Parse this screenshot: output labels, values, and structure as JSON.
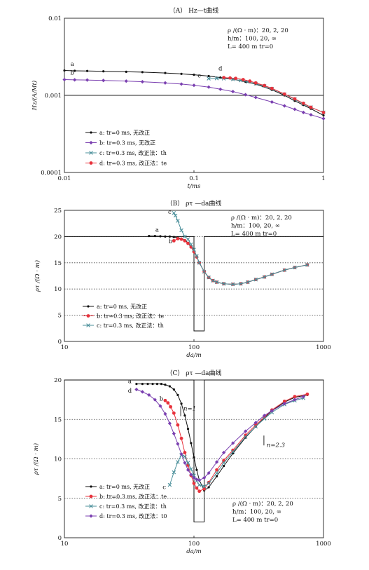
{
  "chart_data": [
    {
      "type": "line",
      "title": "（A） Hz—t曲线",
      "xlabel": "t/ms",
      "ylabel": "Hz/(A/Mt)",
      "x_scale": "log",
      "y_scale": "log",
      "xlim": [
        0.01,
        1
      ],
      "ylim": [
        0.0001,
        0.01
      ],
      "x_ticks": [
        "0.01",
        "0.1",
        "1"
      ],
      "y_ticks": [
        "0.0001",
        "0.001",
        "0.01"
      ],
      "grid": "horizontal",
      "params": [
        "ρ /(Ω · m)：20, 2, 20",
        "h/m：100, 20, ∞",
        "L= 400 m    tr=0"
      ],
      "legend": [
        {
          "id": "a",
          "label": "a: tr=0 ms, 无改正"
        },
        {
          "id": "b",
          "label": "b: tr=0.3 ms, 无改正"
        },
        {
          "id": "c",
          "label": "c: tr=0.3 ms, 改正法：th"
        },
        {
          "id": "d",
          "label": "d: tr=0.3 ms, 改正法：te"
        }
      ],
      "series": [
        {
          "name": "a",
          "color": "#111111",
          "marker": "dot",
          "x": [
            0.01,
            0.012,
            0.015,
            0.02,
            0.03,
            0.04,
            0.06,
            0.08,
            0.1,
            0.13,
            0.16,
            0.2,
            0.25,
            0.3,
            0.4,
            0.5,
            0.6,
            0.7,
            0.8,
            1.0
          ],
          "y": [
            0.0021,
            0.00208,
            0.00207,
            0.00205,
            0.00202,
            0.002,
            0.00195,
            0.0019,
            0.00185,
            0.00178,
            0.0017,
            0.00162,
            0.0015,
            0.0014,
            0.00118,
            0.001,
            0.00085,
            0.00075,
            0.00067,
            0.00055
          ]
        },
        {
          "name": "b",
          "color": "#7a3fb0",
          "marker": "diamond",
          "x": [
            0.01,
            0.012,
            0.015,
            0.02,
            0.03,
            0.04,
            0.06,
            0.08,
            0.1,
            0.13,
            0.16,
            0.2,
            0.25,
            0.3,
            0.4,
            0.5,
            0.6,
            0.7,
            0.8,
            1.0
          ],
          "y": [
            0.0016,
            0.00159,
            0.00158,
            0.00156,
            0.00153,
            0.0015,
            0.00145,
            0.0014,
            0.00135,
            0.00128,
            0.0012,
            0.00112,
            0.00102,
            0.00094,
            0.00082,
            0.00073,
            0.00066,
            0.0006,
            0.00056,
            0.0005
          ]
        },
        {
          "name": "c",
          "color": "#4a8f9a",
          "marker": "x",
          "x": [
            0.13,
            0.15,
            0.17,
            0.2,
            0.23,
            0.26,
            0.3,
            0.35,
            0.4,
            0.5,
            0.6,
            0.7,
            0.8,
            1.0
          ],
          "y": [
            0.00165,
            0.00166,
            0.00165,
            0.00162,
            0.00156,
            0.0015,
            0.00142,
            0.00132,
            0.00122,
            0.00103,
            0.00089,
            0.00077,
            0.0007,
            0.0006
          ]
        },
        {
          "name": "d",
          "color": "#e8323c",
          "marker": "dot",
          "x": [
            0.17,
            0.19,
            0.21,
            0.24,
            0.27,
            0.3,
            0.35,
            0.4,
            0.5,
            0.6,
            0.7,
            0.8,
            1.0
          ],
          "y": [
            0.0017,
            0.00168,
            0.00166,
            0.0016,
            0.00153,
            0.00145,
            0.00134,
            0.00123,
            0.00104,
            0.0009,
            0.00079,
            0.0007,
            0.0006
          ]
        }
      ],
      "point_labels": [
        {
          "series": "a",
          "text": "a",
          "x": 0.0115,
          "y": 0.0024
        },
        {
          "series": "b",
          "text": "b",
          "x": 0.0115,
          "y": 0.00185
        },
        {
          "series": "c",
          "text": "c",
          "x": 0.11,
          "y": 0.0017
        },
        {
          "series": "d",
          "text": "d",
          "x": 0.16,
          "y": 0.0021
        }
      ]
    },
    {
      "type": "line",
      "title": "（B） ρτ —da曲线",
      "xlabel": "da/m",
      "ylabel": "ρτ /(Ω · m)",
      "x_scale": "log",
      "y_scale": "linear",
      "xlim": [
        10,
        1000
      ],
      "ylim": [
        0,
        25
      ],
      "x_ticks": [
        "10",
        "100",
        "1000"
      ],
      "y_ticks": [
        "0",
        "5",
        "10",
        "15",
        "20",
        "25"
      ],
      "grid": "horizontal-dotted",
      "params": [
        "ρ /(Ω · m)：20, 2, 20",
        "h/m：100, 20, ∞",
        "L= 400 m    tr=0"
      ],
      "model": {
        "x": [
          10,
          100,
          100,
          120,
          120,
          1000
        ],
        "y": [
          20,
          20,
          2,
          2,
          20,
          20
        ]
      },
      "legend": [
        {
          "id": "a",
          "label": "a: tr=0 ms, 无改正"
        },
        {
          "id": "b",
          "label": "b: tr=0.3 ms, 改正法：te"
        },
        {
          "id": "c",
          "label": "c: tr=0.3 ms, 改正法：th"
        }
      ],
      "series": [
        {
          "name": "a",
          "color": "#111111",
          "marker": "dot",
          "x": [
            45,
            50,
            55,
            60,
            65,
            70,
            75,
            80,
            85,
            90,
            95,
            100,
            105,
            110,
            120,
            130,
            140,
            150,
            170,
            200,
            230,
            260,
            300,
            350,
            400,
            500,
            600,
            750
          ],
          "y": [
            20.1,
            20.1,
            20.05,
            20,
            20,
            19.9,
            19.8,
            19.6,
            19.3,
            18.8,
            18.1,
            17.2,
            16.2,
            15,
            13.3,
            12.2,
            11.6,
            11.3,
            11,
            10.9,
            11,
            11.3,
            11.8,
            12.3,
            12.8,
            13.6,
            14.1,
            14.6
          ]
        },
        {
          "name": "b",
          "color": "#e8323c",
          "marker": "dot",
          "x": [
            70,
            75,
            80,
            85,
            90,
            95,
            100,
            105,
            110,
            120,
            130,
            140,
            150,
            170,
            200,
            230,
            260,
            300,
            350,
            400,
            500,
            600,
            750
          ],
          "y": [
            19.2,
            19.6,
            19.5,
            19.2,
            18.7,
            18,
            17.1,
            16.1,
            15,
            13.3,
            12.2,
            11.6,
            11.3,
            11,
            10.9,
            11,
            11.3,
            11.8,
            12.3,
            12.8,
            13.6,
            14.1,
            14.6
          ]
        },
        {
          "name": "c",
          "color": "#4a8f9a",
          "marker": "x",
          "x": [
            70,
            72,
            75,
            80,
            85,
            90,
            95,
            100,
            105,
            110,
            120,
            130,
            140,
            150,
            170,
            200,
            230,
            260,
            300,
            350,
            400,
            500,
            600,
            750
          ],
          "y": [
            24.5,
            24,
            23,
            21.2,
            20,
            19.5,
            18.5,
            17.5,
            16.3,
            15,
            13.3,
            12.2,
            11.6,
            11.3,
            11,
            10.9,
            11,
            11.3,
            11.8,
            12.3,
            12.8,
            13.6,
            14.1,
            14.6
          ]
        }
      ],
      "point_labels": [
        {
          "series": "a",
          "text": "a",
          "x": 52,
          "y": 20.9
        },
        {
          "series": "b",
          "text": "b",
          "x": 66,
          "y": 18.7
        },
        {
          "series": "c",
          "text": "c",
          "x": 65,
          "y": 24.3
        }
      ]
    },
    {
      "type": "line",
      "title": "（C） ρτ —da曲线",
      "xlabel": "da/m",
      "ylabel": "ρτ /(Ω · m)",
      "x_scale": "log",
      "y_scale": "linear",
      "xlim": [
        10,
        1000
      ],
      "ylim": [
        0,
        20
      ],
      "x_ticks": [
        "10",
        "100",
        "1000"
      ],
      "y_ticks": [
        "0",
        "5",
        "10",
        "15",
        "20"
      ],
      "grid": "horizontal-dotted",
      "params": [
        "ρ /(Ω · m)：20, 2, 20",
        "h/m：100, 20, ∞",
        "L= 400 m    tr=0"
      ],
      "model": {
        "x": [
          10,
          100,
          100,
          120,
          120,
          1000
        ],
        "y": [
          20,
          20,
          2,
          2,
          20,
          20
        ]
      },
      "annotations": [
        {
          "text": "n=1",
          "x": 82,
          "y": 16.3
        },
        {
          "text": "n=2.3",
          "x": 360,
          "y": 12.6
        }
      ],
      "legend": [
        {
          "id": "a",
          "label": "a: tr=0 ms, 无改正"
        },
        {
          "id": "b",
          "label": "b: tr=0.3 ms, 改正法：te"
        },
        {
          "id": "c",
          "label": "c: tr=0.3 ms, 改正法：th"
        },
        {
          "id": "d",
          "label": "d: tr=0.3 ms, 改正法：t0"
        }
      ],
      "series": [
        {
          "name": "a",
          "color": "#111111",
          "marker": "dot",
          "x": [
            36,
            40,
            44,
            48,
            52,
            56,
            60,
            65,
            70,
            75,
            80,
            85,
            90,
            95,
            100,
            105,
            110,
            120,
            130,
            150,
            170,
            200,
            250,
            300,
            350,
            400,
            500,
            600,
            750
          ],
          "y": [
            19.5,
            19.5,
            19.5,
            19.5,
            19.5,
            19.5,
            19.4,
            19.2,
            18.8,
            18.1,
            17,
            15.5,
            13.8,
            12,
            10.2,
            8.6,
            7.3,
            6,
            6.4,
            7.8,
            9.1,
            10.7,
            12.7,
            14.1,
            15.2,
            16.1,
            17.2,
            17.8,
            18.1
          ]
        },
        {
          "name": "b",
          "color": "#e8323c",
          "marker": "dot",
          "x": [
            60,
            63,
            66,
            70,
            75,
            80,
            85,
            90,
            95,
            100,
            105,
            110,
            120,
            130,
            150,
            170,
            200,
            250,
            300,
            350,
            400,
            500,
            600,
            750
          ],
          "y": [
            17.4,
            17.1,
            16.6,
            15.8,
            14.3,
            12.6,
            10.8,
            9.2,
            7.9,
            6.9,
            6.3,
            5.9,
            6.2,
            7,
            8.6,
            9.8,
            11.1,
            13,
            14.3,
            15.3,
            16.2,
            17.3,
            17.9,
            18.2
          ]
        },
        {
          "name": "c",
          "color": "#4a8f9a",
          "marker": "x",
          "x": [
            65,
            70,
            75,
            80,
            85,
            90,
            95,
            100,
            105,
            110,
            120,
            130,
            150,
            170,
            200,
            250,
            300,
            350,
            400,
            500,
            600,
            700
          ],
          "y": [
            6.7,
            8.3,
            9.6,
            10.5,
            10.3,
            9.5,
            8.7,
            7.9,
            7.2,
            6.7,
            6.5,
            6.9,
            8.2,
            9.5,
            10.9,
            12.8,
            14.1,
            15.1,
            15.9,
            16.9,
            17.4,
            17.7
          ]
        },
        {
          "name": "d",
          "color": "#7a3fb0",
          "marker": "diamond",
          "x": [
            36,
            40,
            45,
            50,
            55,
            60,
            65,
            70,
            75,
            80,
            85,
            90,
            95,
            100,
            105,
            110,
            120,
            130,
            150,
            170,
            200,
            250,
            300,
            350,
            400,
            500,
            600,
            700
          ],
          "y": [
            18.8,
            18.5,
            18.1,
            17.5,
            16.7,
            15.7,
            14.5,
            13.2,
            11.9,
            10.6,
            9.5,
            8.6,
            8,
            7.6,
            7.4,
            7.3,
            7.6,
            8.2,
            9.6,
            10.8,
            12,
            13.5,
            14.6,
            15.5,
            16.1,
            17,
            17.5,
            17.9
          ]
        }
      ],
      "point_labels": [
        {
          "series": "a",
          "text": "a",
          "x": 32,
          "y": 19.6
        },
        {
          "series": "d",
          "text": "d",
          "x": 32,
          "y": 18.4
        },
        {
          "series": "b",
          "text": "b",
          "x": 56,
          "y": 17.4
        },
        {
          "series": "c",
          "text": "c",
          "x": 59,
          "y": 6.2
        }
      ]
    }
  ]
}
